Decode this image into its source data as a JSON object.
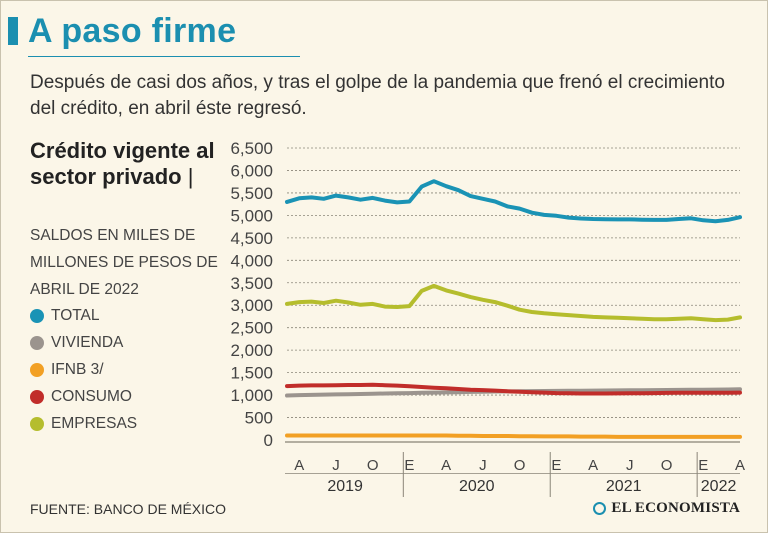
{
  "header": {
    "title": "A paso firme",
    "subtitle": "Después de casi dos años, y tras el golpe de la pandemia que frenó el crecimiento del crédito, en abril éste regresó."
  },
  "panel": {
    "chart_title": "Crédito vigente al sector privado",
    "chart_title_sep": "|",
    "units": "SALDOS EN MILES DE MILLONES DE PESOS DE ABRIL DE 2022"
  },
  "legend": [
    {
      "label": "TOTAL",
      "color": "#1a93b5"
    },
    {
      "label": "VIVIENDA",
      "color": "#9b948e"
    },
    {
      "label": "IFNB 3/",
      "color": "#f2a024"
    },
    {
      "label": "CONSUMO",
      "color": "#c12d2a"
    },
    {
      "label": "EMPRESAS",
      "color": "#b5bd2d"
    }
  ],
  "footer": {
    "source": "FUENTE: BANCO DE MÉXICO",
    "brand": "EL ECONOMISTA"
  },
  "chart_data": {
    "type": "line",
    "title": "Crédito vigente al sector privado",
    "ylabel": "Saldos en miles de millones de pesos de abril de 2022",
    "ylim": [
      0,
      6500
    ],
    "yticks": [
      0,
      500,
      1000,
      1500,
      2000,
      2500,
      3000,
      3500,
      4000,
      4500,
      5000,
      5500,
      6000,
      6500
    ],
    "ytick_labels": [
      "0",
      "500",
      "1,000",
      "1,500",
      "2,000",
      "2,500",
      "3,000",
      "3,500",
      "4,000",
      "4,500",
      "5,000",
      "5,500",
      "6,000",
      "6,500"
    ],
    "grid": true,
    "x_start": "2019-03",
    "month_tick_labels": [
      {
        "label": "A",
        "index": 1
      },
      {
        "label": "J",
        "index": 4
      },
      {
        "label": "O",
        "index": 7
      },
      {
        "label": "E",
        "index": 10
      },
      {
        "label": "A",
        "index": 13
      },
      {
        "label": "J",
        "index": 16
      },
      {
        "label": "O",
        "index": 19
      },
      {
        "label": "E",
        "index": 22
      },
      {
        "label": "A",
        "index": 25
      },
      {
        "label": "J",
        "index": 28
      },
      {
        "label": "O",
        "index": 31
      },
      {
        "label": "E",
        "index": 34
      },
      {
        "label": "A",
        "index": 37
      }
    ],
    "year_groups": [
      {
        "label": "2019",
        "start": 0,
        "end": 9.5
      },
      {
        "label": "2020",
        "start": 9.5,
        "end": 21.5
      },
      {
        "label": "2021",
        "start": 21.5,
        "end": 33.5
      },
      {
        "label": "2022",
        "start": 33.5,
        "end": 38
      }
    ],
    "series": [
      {
        "name": "TOTAL",
        "color": "#1a93b5",
        "values": [
          5300,
          5380,
          5400,
          5370,
          5440,
          5400,
          5350,
          5390,
          5330,
          5290,
          5310,
          5640,
          5760,
          5650,
          5560,
          5430,
          5370,
          5310,
          5200,
          5150,
          5060,
          5010,
          4990,
          4950,
          4930,
          4920,
          4915,
          4910,
          4910,
          4905,
          4900,
          4900,
          4920,
          4935,
          4890,
          4870,
          4900,
          4960
        ]
      },
      {
        "name": "VIVIENDA",
        "color": "#9b948e",
        "values": [
          990,
          1000,
          1005,
          1010,
          1015,
          1020,
          1025,
          1030,
          1035,
          1040,
          1045,
          1050,
          1055,
          1060,
          1065,
          1070,
          1075,
          1080,
          1082,
          1085,
          1088,
          1090,
          1092,
          1095,
          1097,
          1100,
          1102,
          1104,
          1106,
          1108,
          1110,
          1112,
          1115,
          1117,
          1120,
          1122,
          1125,
          1128
        ]
      },
      {
        "name": "IFNB 3/",
        "color": "#f2a024",
        "values": [
          100,
          100,
          100,
          100,
          100,
          100,
          100,
          100,
          100,
          100,
          100,
          100,
          100,
          100,
          95,
          95,
          90,
          90,
          90,
          85,
          85,
          80,
          80,
          80,
          75,
          75,
          75,
          70,
          70,
          70,
          70,
          70,
          70,
          70,
          70,
          70,
          70,
          70
        ]
      },
      {
        "name": "CONSUMO",
        "color": "#c12d2a",
        "values": [
          1200,
          1210,
          1215,
          1215,
          1220,
          1225,
          1225,
          1230,
          1220,
          1210,
          1195,
          1180,
          1165,
          1150,
          1135,
          1120,
          1110,
          1100,
          1085,
          1075,
          1065,
          1055,
          1045,
          1040,
          1035,
          1035,
          1035,
          1038,
          1040,
          1042,
          1045,
          1048,
          1050,
          1052,
          1052,
          1050,
          1052,
          1055
        ]
      },
      {
        "name": "EMPRESAS",
        "color": "#b5bd2d",
        "values": [
          3030,
          3070,
          3080,
          3050,
          3100,
          3060,
          3010,
          3030,
          2970,
          2960,
          2980,
          3320,
          3430,
          3330,
          3260,
          3180,
          3120,
          3070,
          2990,
          2900,
          2850,
          2820,
          2800,
          2780,
          2760,
          2740,
          2730,
          2720,
          2710,
          2700,
          2690,
          2690,
          2700,
          2710,
          2690,
          2670,
          2680,
          2730
        ]
      }
    ]
  }
}
